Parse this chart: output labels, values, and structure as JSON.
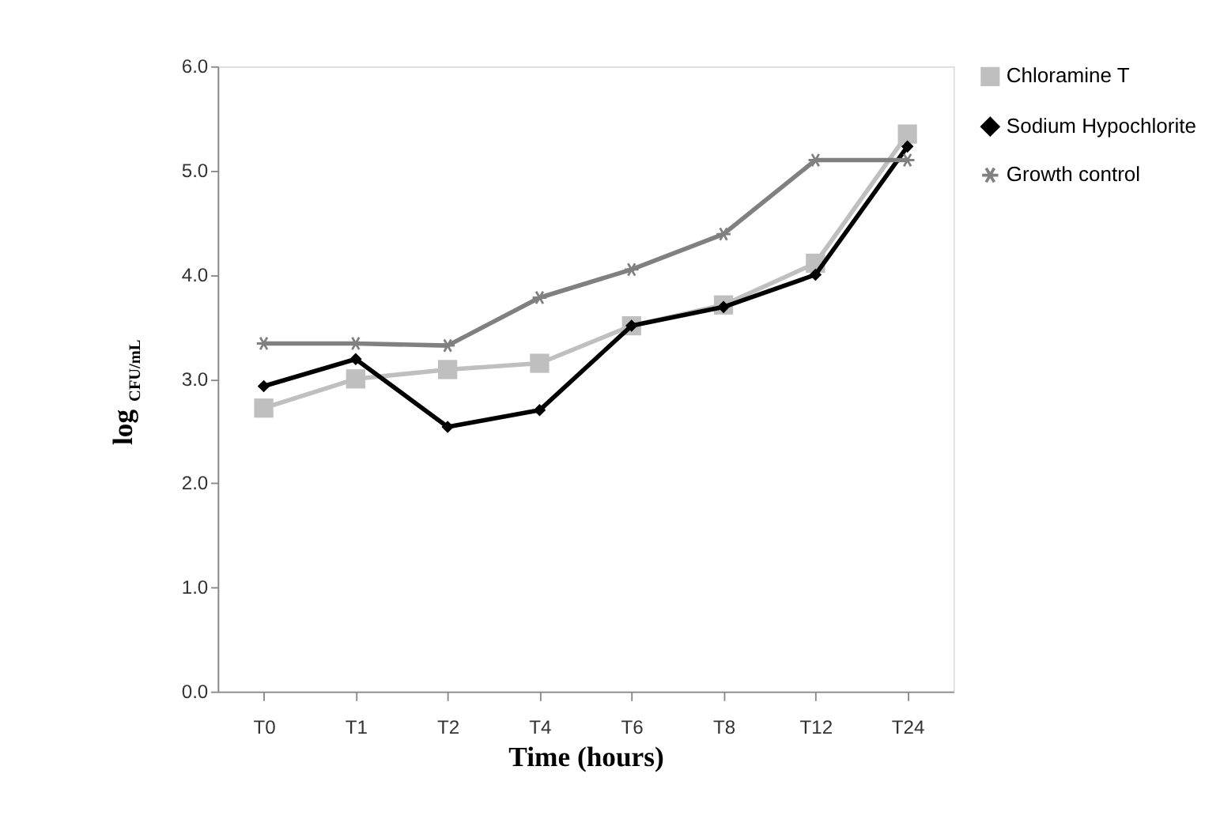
{
  "chart_data": {
    "type": "line",
    "xlabel": "Time (hours)",
    "ylabel": "log$_{CFU/mL}$",
    "categories": [
      "T0",
      "T1",
      "T2",
      "T4",
      "T6",
      "T8",
      "T12",
      "T24"
    ],
    "series": [
      {
        "name": "Chloramine T",
        "color": "#bfbfbf",
        "marker": "square",
        "values": [
          2.72,
          3.0,
          3.09,
          3.15,
          3.51,
          3.71,
          4.11,
          5.35
        ]
      },
      {
        "name": "Sodium Hypochlorite",
        "color": "#000000",
        "marker": "diamond",
        "values": [
          2.93,
          3.19,
          2.54,
          2.7,
          3.51,
          3.69,
          4.0,
          5.23
        ]
      },
      {
        "name": "Growth control",
        "color": "#808080",
        "marker": "cross",
        "values": [
          3.34,
          3.34,
          3.32,
          3.78,
          4.05,
          4.39,
          5.1,
          5.1
        ]
      }
    ],
    "ylim": [
      0,
      6
    ],
    "yticks": [
      {
        "value": 0,
        "label": "0.0"
      },
      {
        "value": 1,
        "label": "1.0"
      },
      {
        "value": 2,
        "label": "2.0"
      },
      {
        "value": 3,
        "label": "3.0"
      },
      {
        "value": 4,
        "label": "4.0"
      },
      {
        "value": 5,
        "label": "5.0"
      },
      {
        "value": 6,
        "label": "6.0"
      }
    ],
    "grid": false,
    "legend": "right",
    "line_style": "solid"
  }
}
